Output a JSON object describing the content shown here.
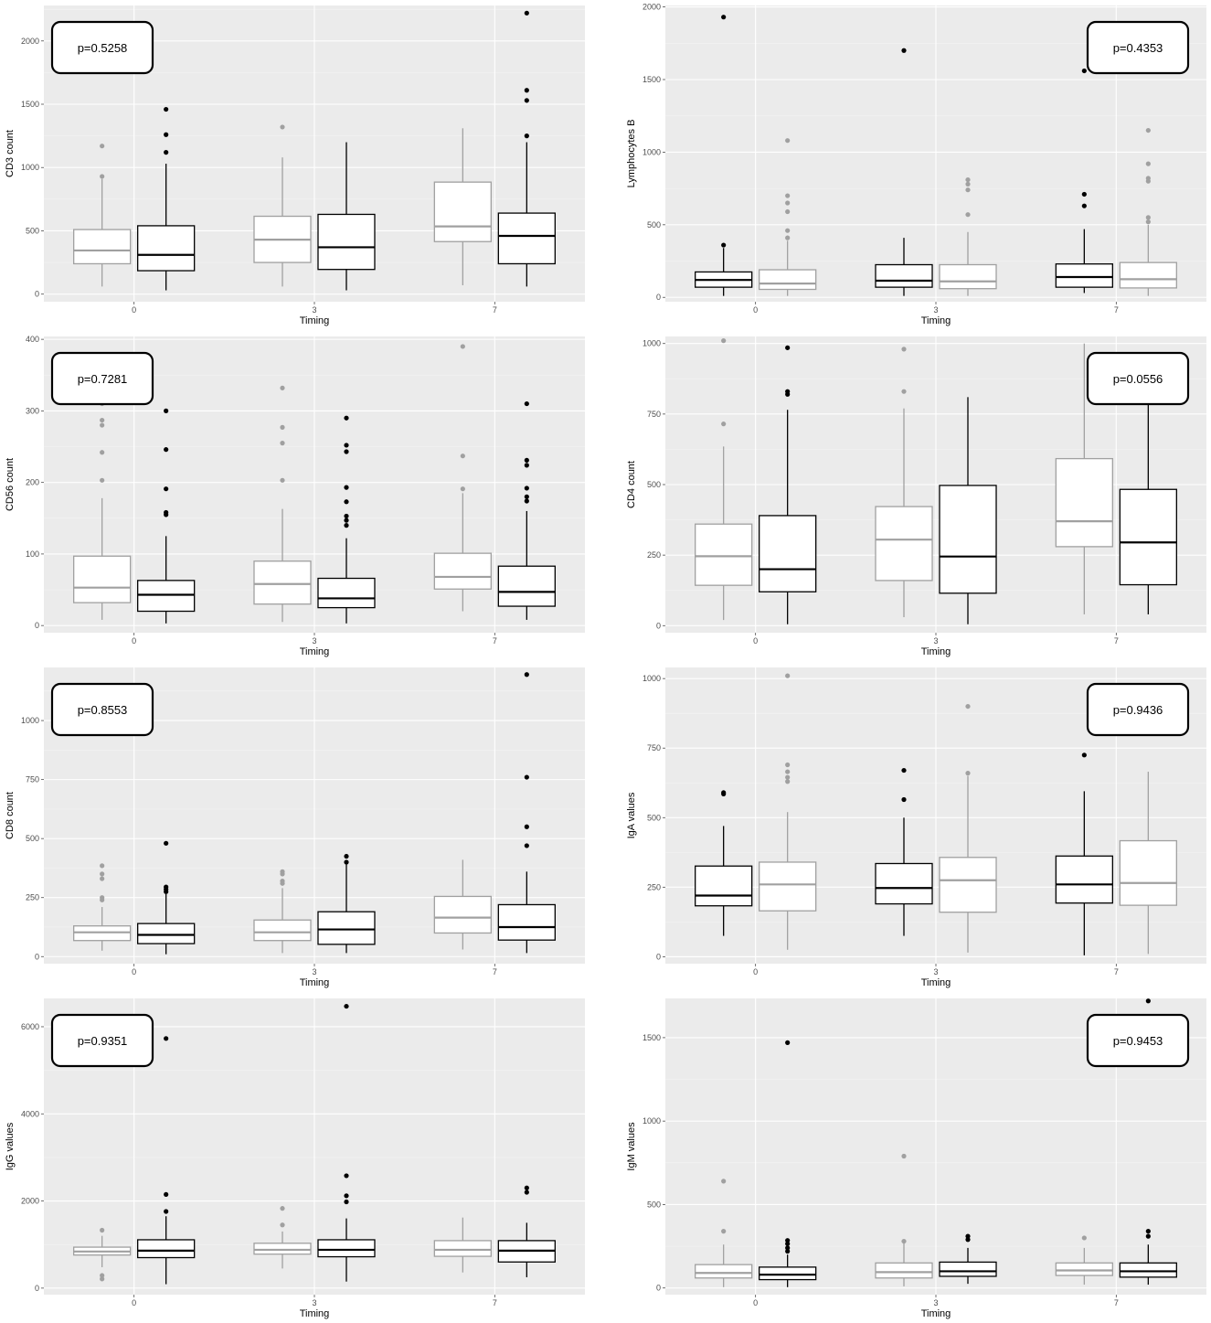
{
  "chart_data": [
    {
      "type": "box",
      "ylabel": "CD3 count",
      "xlabel": "Timing",
      "categories": [
        "0",
        "3",
        "7"
      ],
      "yticks": [
        0,
        500,
        1000,
        1500,
        2000
      ],
      "ylim": [
        -60,
        2280
      ],
      "annotation": {
        "text": "p=0.5258",
        "position": "top-left"
      },
      "groups": [
        {
          "color": "#a0a0a0",
          "boxes": [
            {
              "min": 60,
              "q1": 240,
              "median": 345,
              "q3": 510,
              "max": 910,
              "outliers": [
                930,
                1170
              ]
            },
            {
              "min": 60,
              "q1": 250,
              "median": 430,
              "q3": 615,
              "max": 1080,
              "outliers": [
                1320
              ]
            },
            {
              "min": 70,
              "q1": 415,
              "median": 535,
              "q3": 885,
              "max": 1310,
              "outliers": []
            }
          ]
        },
        {
          "color": "#000000",
          "boxes": [
            {
              "min": 30,
              "q1": 185,
              "median": 310,
              "q3": 540,
              "max": 1030,
              "outliers": [
                1120,
                1260,
                1460
              ]
            },
            {
              "min": 30,
              "q1": 195,
              "median": 370,
              "q3": 630,
              "max": 1200,
              "outliers": []
            },
            {
              "min": 60,
              "q1": 240,
              "median": 460,
              "q3": 640,
              "max": 1200,
              "outliers": [
                1250,
                1530,
                1610,
                2220
              ]
            }
          ]
        }
      ]
    },
    {
      "type": "box",
      "ylabel": "Lymphocytes B",
      "xlabel": "Timing",
      "categories": [
        "0",
        "3",
        "7"
      ],
      "yticks": [
        0,
        500,
        1000,
        1500,
        2000
      ],
      "ylim": [
        -30,
        2010
      ],
      "annotation": {
        "text": "p=0.4353",
        "position": "top-right"
      },
      "groups": [
        {
          "color": "#000000",
          "boxes": [
            {
              "min": 10,
              "q1": 70,
              "median": 120,
              "q3": 175,
              "max": 340,
              "outliers": [
                360,
                1930
              ]
            },
            {
              "min": 10,
              "q1": 70,
              "median": 115,
              "q3": 225,
              "max": 410,
              "outliers": [
                1700
              ]
            },
            {
              "min": 30,
              "q1": 70,
              "median": 140,
              "q3": 230,
              "max": 470,
              "outliers": [
                630,
                710,
                1560
              ]
            }
          ]
        },
        {
          "color": "#a0a0a0",
          "boxes": [
            {
              "min": 10,
              "q1": 55,
              "median": 95,
              "q3": 190,
              "max": 390,
              "outliers": [
                410,
                460,
                590,
                650,
                700,
                1080
              ]
            },
            {
              "min": 10,
              "q1": 60,
              "median": 110,
              "q3": 225,
              "max": 450,
              "outliers": [
                570,
                740,
                780,
                810
              ]
            },
            {
              "min": 10,
              "q1": 65,
              "median": 125,
              "q3": 240,
              "max": 500,
              "outliers": [
                520,
                550,
                800,
                820,
                920,
                1150
              ]
            }
          ]
        }
      ]
    },
    {
      "type": "box",
      "ylabel": "CD56 count",
      "xlabel": "Timing",
      "categories": [
        "0",
        "3",
        "7"
      ],
      "yticks": [
        0,
        100,
        200,
        300,
        400
      ],
      "ylim": [
        -10,
        404
      ],
      "annotation": {
        "text": "p=0.7281",
        "position": "top-left"
      },
      "groups": [
        {
          "color": "#a0a0a0",
          "boxes": [
            {
              "min": 8,
              "q1": 32,
              "median": 53,
              "q3": 97,
              "max": 178,
              "outliers": [
                203,
                242,
                280,
                287,
                310
              ]
            },
            {
              "min": 5,
              "q1": 30,
              "median": 58,
              "q3": 90,
              "max": 163,
              "outliers": [
                203,
                255,
                277,
                332
              ]
            },
            {
              "min": 20,
              "q1": 51,
              "median": 68,
              "q3": 101,
              "max": 185,
              "outliers": [
                191,
                237,
                390
              ]
            }
          ]
        },
        {
          "color": "#000000",
          "boxes": [
            {
              "min": 3,
              "q1": 20,
              "median": 43,
              "q3": 63,
              "max": 125,
              "outliers": [
                155,
                158,
                191,
                246,
                300
              ]
            },
            {
              "min": 3,
              "q1": 25,
              "median": 38,
              "q3": 66,
              "max": 122,
              "outliers": [
                140,
                147,
                153,
                173,
                193,
                243,
                252,
                290
              ]
            },
            {
              "min": 8,
              "q1": 27,
              "median": 47,
              "q3": 83,
              "max": 160,
              "outliers": [
                174,
                180,
                192,
                224,
                231,
                310
              ]
            }
          ]
        }
      ]
    },
    {
      "type": "box",
      "ylabel": "CD4 count",
      "xlabel": "Timing",
      "categories": [
        "0",
        "3",
        "7"
      ],
      "yticks": [
        0,
        250,
        500,
        750,
        1000
      ],
      "ylim": [
        -25,
        1025
      ],
      "annotation": {
        "text": "p=0.0556",
        "position": "top-right"
      },
      "groups": [
        {
          "color": "#a0a0a0",
          "boxes": [
            {
              "min": 20,
              "q1": 143,
              "median": 246,
              "q3": 360,
              "max": 635,
              "outliers": [
                715,
                1010
              ]
            },
            {
              "min": 30,
              "q1": 160,
              "median": 305,
              "q3": 422,
              "max": 770,
              "outliers": [
                830,
                980
              ]
            },
            {
              "min": 40,
              "q1": 280,
              "median": 370,
              "q3": 592,
              "max": 1000,
              "outliers": []
            }
          ]
        },
        {
          "color": "#000000",
          "boxes": [
            {
              "min": 5,
              "q1": 120,
              "median": 200,
              "q3": 390,
              "max": 765,
              "outliers": [
                820,
                830,
                985
              ]
            },
            {
              "min": 5,
              "q1": 115,
              "median": 245,
              "q3": 497,
              "max": 810,
              "outliers": []
            },
            {
              "min": 40,
              "q1": 145,
              "median": 295,
              "q3": 483,
              "max": 820,
              "outliers": []
            }
          ]
        }
      ]
    },
    {
      "type": "box",
      "ylabel": "CD8 count",
      "xlabel": "Timing",
      "categories": [
        "0",
        "3",
        "7"
      ],
      "yticks": [
        0,
        250,
        500,
        750,
        1000
      ],
      "ylim": [
        -30,
        1225
      ],
      "annotation": {
        "text": "p=0.8553",
        "position": "top-left"
      },
      "groups": [
        {
          "color": "#a0a0a0",
          "boxes": [
            {
              "min": 25,
              "q1": 68,
              "median": 103,
              "q3": 130,
              "max": 210,
              "outliers": [
                240,
                250,
                330,
                350,
                385
              ]
            },
            {
              "min": 15,
              "q1": 68,
              "median": 103,
              "q3": 155,
              "max": 290,
              "outliers": [
                310,
                320,
                350,
                360
              ]
            },
            {
              "min": 30,
              "q1": 100,
              "median": 165,
              "q3": 255,
              "max": 410,
              "outliers": []
            }
          ]
        },
        {
          "color": "#000000",
          "boxes": [
            {
              "min": 10,
              "q1": 55,
              "median": 92,
              "q3": 140,
              "max": 265,
              "outliers": [
                275,
                285,
                295,
                480
              ]
            },
            {
              "min": 15,
              "q1": 52,
              "median": 115,
              "q3": 190,
              "max": 390,
              "outliers": [
                400,
                425
              ]
            },
            {
              "min": 15,
              "q1": 70,
              "median": 125,
              "q3": 220,
              "max": 360,
              "outliers": [
                470,
                550,
                760,
                1195
              ]
            }
          ]
        }
      ]
    },
    {
      "type": "box",
      "ylabel": "IgA values",
      "xlabel": "Timing",
      "categories": [
        "0",
        "3",
        "7"
      ],
      "yticks": [
        0,
        250,
        500,
        750,
        1000
      ],
      "ylim": [
        -25,
        1040
      ],
      "annotation": {
        "text": "p=0.9436",
        "position": "top-right"
      },
      "groups": [
        {
          "color": "#000000",
          "boxes": [
            {
              "min": 75,
              "q1": 183,
              "median": 220,
              "q3": 326,
              "max": 470,
              "outliers": [
                585,
                590
              ]
            },
            {
              "min": 75,
              "q1": 190,
              "median": 247,
              "q3": 335,
              "max": 500,
              "outliers": [
                565,
                670
              ]
            },
            {
              "min": 5,
              "q1": 193,
              "median": 260,
              "q3": 362,
              "max": 595,
              "outliers": [
                725
              ]
            }
          ]
        },
        {
          "color": "#a0a0a0",
          "boxes": [
            {
              "min": 25,
              "q1": 165,
              "median": 260,
              "q3": 340,
              "max": 520,
              "outliers": [
                630,
                645,
                665,
                690,
                1010
              ]
            },
            {
              "min": 15,
              "q1": 160,
              "median": 275,
              "q3": 357,
              "max": 650,
              "outliers": [
                660,
                900
              ]
            },
            {
              "min": 10,
              "q1": 185,
              "median": 265,
              "q3": 417,
              "max": 665,
              "outliers": []
            }
          ]
        }
      ]
    },
    {
      "type": "box",
      "ylabel": "IgG values",
      "xlabel": "Timing",
      "categories": [
        "0",
        "3",
        "7"
      ],
      "yticks": [
        0,
        2000,
        4000,
        6000
      ],
      "ylim": [
        -150,
        6650
      ],
      "annotation": {
        "text": "p=0.9351",
        "position": "top-left"
      },
      "groups": [
        {
          "color": "#a0a0a0",
          "boxes": [
            {
              "min": 480,
              "q1": 760,
              "median": 840,
              "q3": 940,
              "max": 1200,
              "outliers": [
                210,
                290,
                1330
              ]
            },
            {
              "min": 450,
              "q1": 780,
              "median": 880,
              "q3": 1030,
              "max": 1300,
              "outliers": [
                1450,
                1830
              ]
            },
            {
              "min": 360,
              "q1": 730,
              "median": 880,
              "q3": 1090,
              "max": 1620,
              "outliers": []
            }
          ]
        },
        {
          "color": "#000000",
          "boxes": [
            {
              "min": 90,
              "q1": 700,
              "median": 860,
              "q3": 1110,
              "max": 1650,
              "outliers": [
                1760,
                2150,
                5730
              ]
            },
            {
              "min": 150,
              "q1": 720,
              "median": 880,
              "q3": 1110,
              "max": 1600,
              "outliers": [
                1980,
                2120,
                2580,
                6470
              ]
            },
            {
              "min": 250,
              "q1": 600,
              "median": 860,
              "q3": 1090,
              "max": 1500,
              "outliers": [
                2200,
                2300
              ]
            }
          ]
        }
      ]
    },
    {
      "type": "box",
      "ylabel": "IgM values",
      "xlabel": "Timing",
      "categories": [
        "0",
        "3",
        "7"
      ],
      "yticks": [
        0,
        500,
        1000,
        1500
      ],
      "ylim": [
        -40,
        1735
      ],
      "annotation": {
        "text": "p=0.9453",
        "position": "top-right"
      },
      "groups": [
        {
          "color": "#a0a0a0",
          "boxes": [
            {
              "min": 5,
              "q1": 60,
              "median": 90,
              "q3": 140,
              "max": 260,
              "outliers": [
                340,
                640
              ]
            },
            {
              "min": 10,
              "q1": 60,
              "median": 95,
              "q3": 150,
              "max": 270,
              "outliers": [
                280,
                790
              ]
            },
            {
              "min": 20,
              "q1": 75,
              "median": 105,
              "q3": 150,
              "max": 240,
              "outliers": [
                300
              ]
            }
          ]
        },
        {
          "color": "#000000",
          "boxes": [
            {
              "min": 5,
              "q1": 50,
              "median": 80,
              "q3": 125,
              "max": 200,
              "outliers": [
                220,
                240,
                265,
                285,
                1470
              ]
            },
            {
              "min": 25,
              "q1": 70,
              "median": 100,
              "q3": 155,
              "max": 240,
              "outliers": [
                290,
                310
              ]
            },
            {
              "min": 20,
              "q1": 65,
              "median": 100,
              "q3": 150,
              "max": 260,
              "outliers": [
                310,
                340,
                1720
              ]
            }
          ]
        }
      ]
    }
  ]
}
